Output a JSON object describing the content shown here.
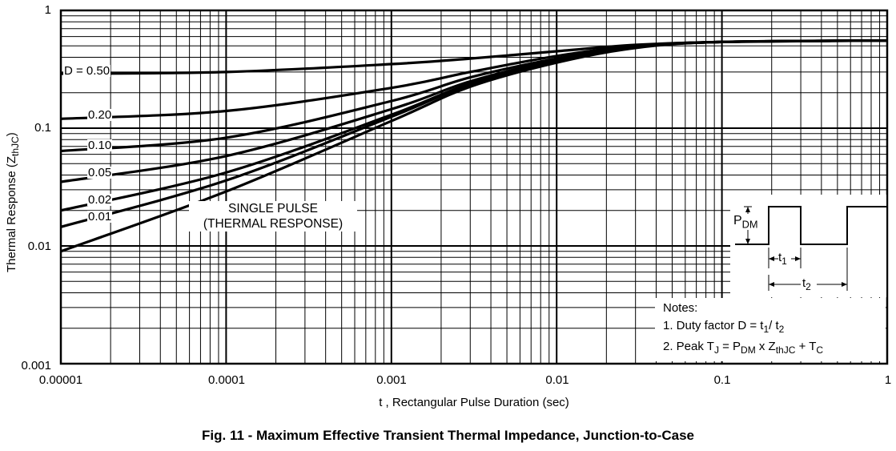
{
  "chart_data": {
    "type": "line",
    "title": "Fig. 11 - Maximum Effective Transient Thermal Impedance, Junction-to-Case",
    "xlabel": "t , Rectangular Pulse Duration (sec)",
    "ylabel_main": "Thermal Response (Z",
    "ylabel_sub": "thJC",
    "ylabel_end": ")",
    "x_scale": "log",
    "y_scale": "log",
    "xlim": [
      1e-05,
      1
    ],
    "ylim": [
      0.001,
      1
    ],
    "x_ticks": [
      "0.00001",
      "0.0001",
      "0.001",
      "0.01",
      "0.1",
      "1"
    ],
    "y_ticks": [
      "0.001",
      "0.01",
      "0.1",
      "1"
    ],
    "series": [
      {
        "name": "D = 0.50",
        "label": "D = 0.50",
        "x": [
          1e-05,
          0.0001,
          0.001,
          0.003,
          0.01,
          0.03,
          0.1,
          1
        ],
        "y": [
          0.29,
          0.3,
          0.35,
          0.39,
          0.45,
          0.51,
          0.54,
          0.555
        ]
      },
      {
        "name": "0.20",
        "label": "0.20",
        "x": [
          1e-05,
          0.0001,
          0.001,
          0.003,
          0.01,
          0.03,
          0.1,
          1
        ],
        "y": [
          0.12,
          0.14,
          0.22,
          0.3,
          0.41,
          0.5,
          0.54,
          0.555
        ]
      },
      {
        "name": "0.10",
        "label": "0.10",
        "x": [
          1e-05,
          0.0001,
          0.001,
          0.003,
          0.01,
          0.03,
          0.1,
          1
        ],
        "y": [
          0.064,
          0.083,
          0.17,
          0.27,
          0.39,
          0.49,
          0.54,
          0.555
        ]
      },
      {
        "name": "0.05",
        "label": "0.05",
        "x": [
          1e-05,
          0.0001,
          0.001,
          0.003,
          0.01,
          0.03,
          0.1,
          1
        ],
        "y": [
          0.035,
          0.058,
          0.145,
          0.25,
          0.38,
          0.49,
          0.54,
          0.555
        ]
      },
      {
        "name": "0.02",
        "label": "0.02",
        "x": [
          1e-05,
          0.0001,
          0.001,
          0.003,
          0.01,
          0.03,
          0.1,
          1
        ],
        "y": [
          0.02,
          0.042,
          0.13,
          0.24,
          0.375,
          0.49,
          0.54,
          0.555
        ]
      },
      {
        "name": "0.01",
        "label": "0.01",
        "x": [
          1e-05,
          0.0001,
          0.001,
          0.003,
          0.01,
          0.03,
          0.1,
          1
        ],
        "y": [
          0.0145,
          0.036,
          0.125,
          0.235,
          0.37,
          0.49,
          0.54,
          0.555
        ]
      },
      {
        "name": "SINGLE PULSE (THERMAL RESPONSE)",
        "x": [
          1e-05,
          0.0001,
          0.001,
          0.003,
          0.01,
          0.03,
          0.1,
          1
        ],
        "y": [
          0.009,
          0.029,
          0.115,
          0.225,
          0.36,
          0.48,
          0.54,
          0.555
        ]
      }
    ],
    "annotations": {
      "single_pulse_line1": "SINGLE PULSE",
      "single_pulse_line2": "(THERMAL RESPONSE)",
      "notes_title": "Notes:",
      "note1_prefix": "1. Duty factor D = t",
      "note1_sub1": "1",
      "note1_mid": "/ t",
      "note1_sub2": "2",
      "note2_prefix": "2. Peak T",
      "note2_sub_j": "J",
      "note2_eq": " = P",
      "note2_sub_dm": "DM",
      "note2_x": " x Z",
      "note2_sub_thjc": "thJC",
      "note2_plus": " + T",
      "note2_sub_c": "C",
      "pdm_p": "P",
      "pdm_sub": "DM",
      "t1_t": "t",
      "t1_sub": "1",
      "t2_t": "t",
      "t2_sub": "2"
    }
  }
}
